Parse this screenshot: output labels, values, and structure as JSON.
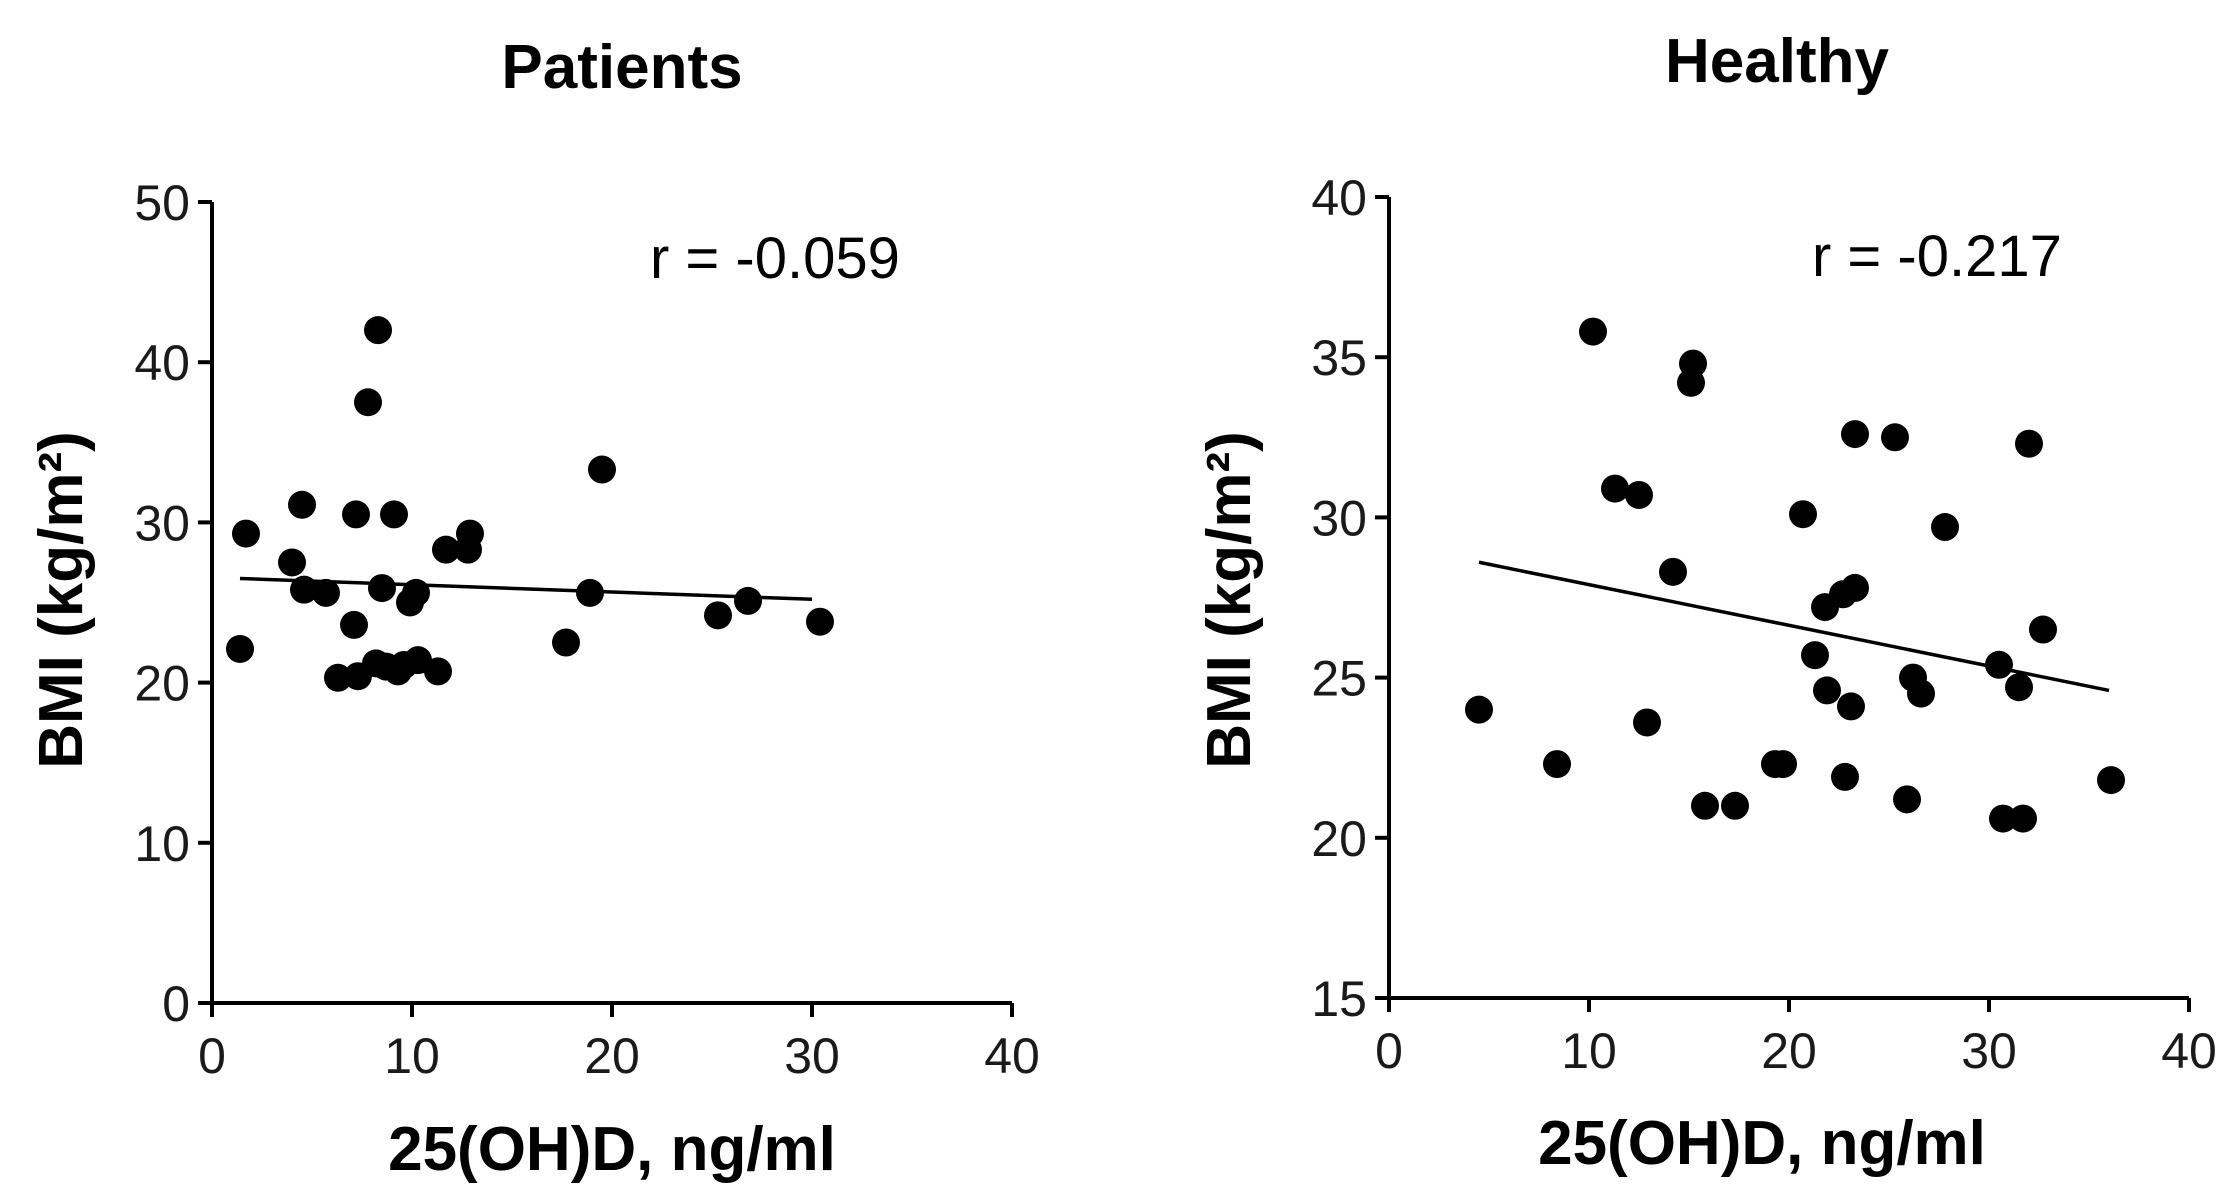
{
  "chart_data": [
    {
      "type": "scatter",
      "title": "Patients",
      "xlabel": "25(OH)D, ng/ml",
      "ylabel": "BMI (kg/m²)",
      "xlim": [
        0,
        40
      ],
      "ylim": [
        0,
        50
      ],
      "xticks": [
        0,
        10,
        20,
        30,
        40
      ],
      "yticks": [
        0,
        10,
        20,
        30,
        40,
        50
      ],
      "annotation": "r = -0.059",
      "trendline": {
        "x": [
          1.4,
          30.0
        ],
        "y": [
          26.5,
          25.2
        ]
      },
      "points": [
        {
          "x": 1.4,
          "y": 22.1
        },
        {
          "x": 1.7,
          "y": 29.3
        },
        {
          "x": 4.0,
          "y": 27.5
        },
        {
          "x": 4.5,
          "y": 31.1
        },
        {
          "x": 4.6,
          "y": 25.8
        },
        {
          "x": 5.7,
          "y": 25.6
        },
        {
          "x": 6.3,
          "y": 20.3
        },
        {
          "x": 7.1,
          "y": 23.6
        },
        {
          "x": 7.2,
          "y": 30.5
        },
        {
          "x": 7.3,
          "y": 20.4
        },
        {
          "x": 7.8,
          "y": 37.5
        },
        {
          "x": 8.2,
          "y": 21.2
        },
        {
          "x": 8.3,
          "y": 42.0
        },
        {
          "x": 8.5,
          "y": 25.9
        },
        {
          "x": 8.7,
          "y": 21.0
        },
        {
          "x": 9.1,
          "y": 30.5
        },
        {
          "x": 9.3,
          "y": 20.7
        },
        {
          "x": 9.6,
          "y": 21.1
        },
        {
          "x": 9.9,
          "y": 25.0
        },
        {
          "x": 10.2,
          "y": 25.6
        },
        {
          "x": 10.3,
          "y": 21.4
        },
        {
          "x": 11.3,
          "y": 20.7
        },
        {
          "x": 11.7,
          "y": 28.3
        },
        {
          "x": 12.8,
          "y": 28.3
        },
        {
          "x": 12.9,
          "y": 29.3
        },
        {
          "x": 17.7,
          "y": 22.5
        },
        {
          "x": 18.9,
          "y": 25.6
        },
        {
          "x": 19.5,
          "y": 33.3
        },
        {
          "x": 25.3,
          "y": 24.2
        },
        {
          "x": 26.8,
          "y": 25.1
        },
        {
          "x": 30.4,
          "y": 23.8
        }
      ]
    },
    {
      "type": "scatter",
      "title": "Healthy",
      "xlabel": "25(OH)D, ng/ml",
      "ylabel": "BMI (kg/m²)",
      "xlim": [
        0,
        40
      ],
      "ylim": [
        15,
        40
      ],
      "xticks": [
        0,
        10,
        20,
        30,
        40
      ],
      "yticks": [
        15,
        20,
        25,
        30,
        35,
        40
      ],
      "annotation": "r = -0.217",
      "trendline": {
        "x": [
          4.5,
          36.0
        ],
        "y": [
          28.6,
          24.6
        ]
      },
      "points": [
        {
          "x": 4.5,
          "y": 24.0
        },
        {
          "x": 8.4,
          "y": 22.3
        },
        {
          "x": 10.2,
          "y": 35.8
        },
        {
          "x": 11.3,
          "y": 30.9
        },
        {
          "x": 12.5,
          "y": 30.7
        },
        {
          "x": 12.9,
          "y": 23.6
        },
        {
          "x": 14.2,
          "y": 28.3
        },
        {
          "x": 15.1,
          "y": 34.2
        },
        {
          "x": 15.2,
          "y": 34.8
        },
        {
          "x": 15.8,
          "y": 21.0
        },
        {
          "x": 17.3,
          "y": 21.0
        },
        {
          "x": 19.3,
          "y": 22.3
        },
        {
          "x": 19.7,
          "y": 22.3
        },
        {
          "x": 20.7,
          "y": 30.1
        },
        {
          "x": 21.3,
          "y": 25.7
        },
        {
          "x": 21.8,
          "y": 27.2
        },
        {
          "x": 21.9,
          "y": 24.6
        },
        {
          "x": 22.7,
          "y": 27.6
        },
        {
          "x": 22.8,
          "y": 21.9
        },
        {
          "x": 23.1,
          "y": 24.1
        },
        {
          "x": 23.3,
          "y": 32.6
        },
        {
          "x": 23.3,
          "y": 27.8
        },
        {
          "x": 25.3,
          "y": 32.5
        },
        {
          "x": 25.9,
          "y": 21.2
        },
        {
          "x": 26.2,
          "y": 25.0
        },
        {
          "x": 26.6,
          "y": 24.5
        },
        {
          "x": 27.8,
          "y": 29.7
        },
        {
          "x": 30.5,
          "y": 25.4
        },
        {
          "x": 30.7,
          "y": 20.6
        },
        {
          "x": 31.5,
          "y": 24.7
        },
        {
          "x": 31.7,
          "y": 20.6
        },
        {
          "x": 32.0,
          "y": 32.3
        },
        {
          "x": 32.7,
          "y": 26.5
        },
        {
          "x": 36.1,
          "y": 21.8
        }
      ]
    }
  ]
}
